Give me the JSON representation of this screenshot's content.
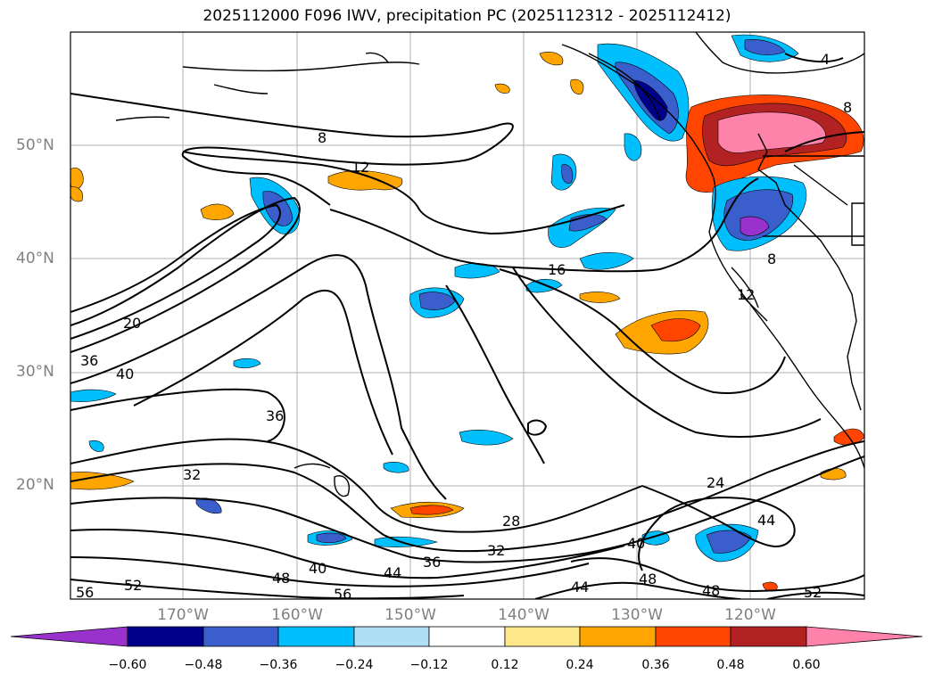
{
  "title": "2025112000 F096 IWV, precipitation PC (2025112312 - 2025112412)",
  "lat_labels": [
    "50°N",
    "40°N",
    "30°N",
    "20°N"
  ],
  "lon_labels": [
    "170°W",
    "160°W",
    "150°W",
    "140°W",
    "130°W",
    "120°W"
  ],
  "contour_labels": [
    "8",
    "12",
    "16",
    "20",
    "36",
    "40",
    "36",
    "32",
    "28",
    "24",
    "44",
    "40",
    "48",
    "48",
    "52",
    "56",
    "52",
    "48",
    "40",
    "44",
    "36",
    "32",
    "56",
    "44",
    "8",
    "12",
    "8",
    "4"
  ],
  "colorbar": {
    "ticks": [
      "−0.60",
      "−0.48",
      "−0.36",
      "−0.24",
      "−0.12",
      "0.12",
      "0.24",
      "0.36",
      "0.48",
      "0.60"
    ],
    "colors": [
      "#9932CC",
      "#00008B",
      "#3A5FCD",
      "#00BFFF",
      "#ADE0F5",
      "#FFFFFF",
      "#FFE88C",
      "#FFA500",
      "#FF4500",
      "#B22222",
      "#FF82AB"
    ]
  }
}
